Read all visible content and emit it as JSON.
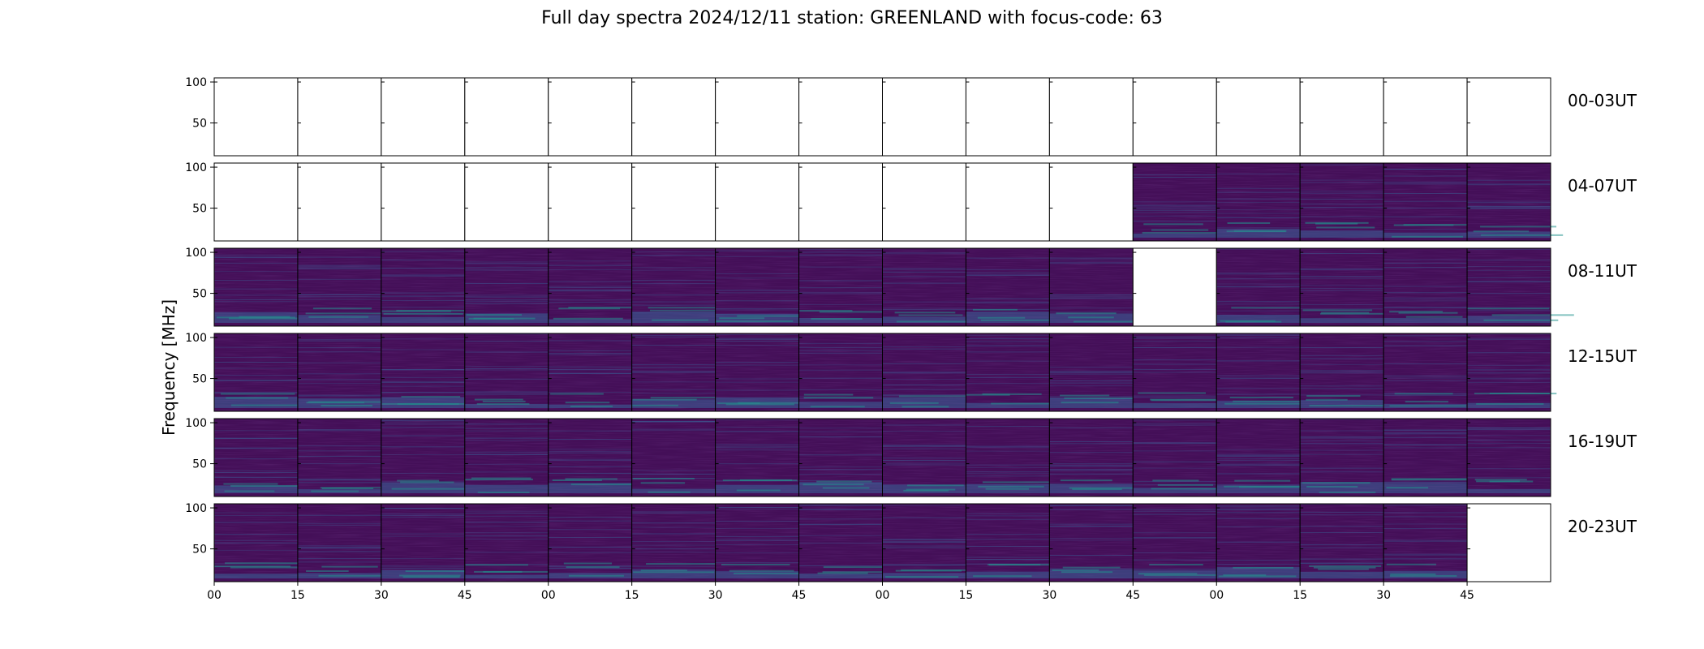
{
  "chart_data": {
    "type": "heatmap",
    "title": "Full day spectra 2024/12/11 station: GREENLAND with focus-code: 63",
    "ylabel": "Frequency [MHz]",
    "xlabel": "",
    "ylim": [
      10,
      105
    ],
    "yticks": [
      100,
      50
    ],
    "xticks": [
      "00",
      "15",
      "30",
      "45",
      "00",
      "15",
      "30",
      "45",
      "00",
      "15",
      "30",
      "45",
      "00",
      "15",
      "30",
      "45"
    ],
    "colormap": "viridis",
    "colors": {
      "background": "#440f58",
      "mid": "#3b528b",
      "high": "#21918c",
      "peak": "#5ec962"
    },
    "rows": [
      {
        "label": "00-03UT",
        "panels": [
          0,
          0,
          0,
          0,
          0,
          0,
          0,
          0,
          0,
          0,
          0,
          0,
          0,
          0,
          0,
          0
        ]
      },
      {
        "label": "04-07UT",
        "panels": [
          0,
          0,
          0,
          0,
          0,
          0,
          0,
          0,
          0,
          0,
          0,
          1,
          1,
          1,
          1,
          1
        ]
      },
      {
        "label": "08-11UT",
        "panels": [
          1,
          1,
          1,
          1,
          1,
          1,
          1,
          1,
          1,
          1,
          1,
          0,
          1,
          1,
          1,
          1
        ]
      },
      {
        "label": "12-15UT",
        "panels": [
          1,
          1,
          1,
          1,
          1,
          1,
          1,
          1,
          1,
          1,
          1,
          1,
          1,
          1,
          1,
          1
        ]
      },
      {
        "label": "16-19UT",
        "panels": [
          1,
          1,
          1,
          1,
          1,
          1,
          1,
          1,
          1,
          1,
          1,
          1,
          1,
          1,
          1,
          1
        ]
      },
      {
        "label": "20-23UT",
        "panels": [
          1,
          1,
          1,
          1,
          1,
          1,
          1,
          1,
          1,
          1,
          1,
          1,
          1,
          1,
          1,
          0
        ]
      }
    ]
  }
}
